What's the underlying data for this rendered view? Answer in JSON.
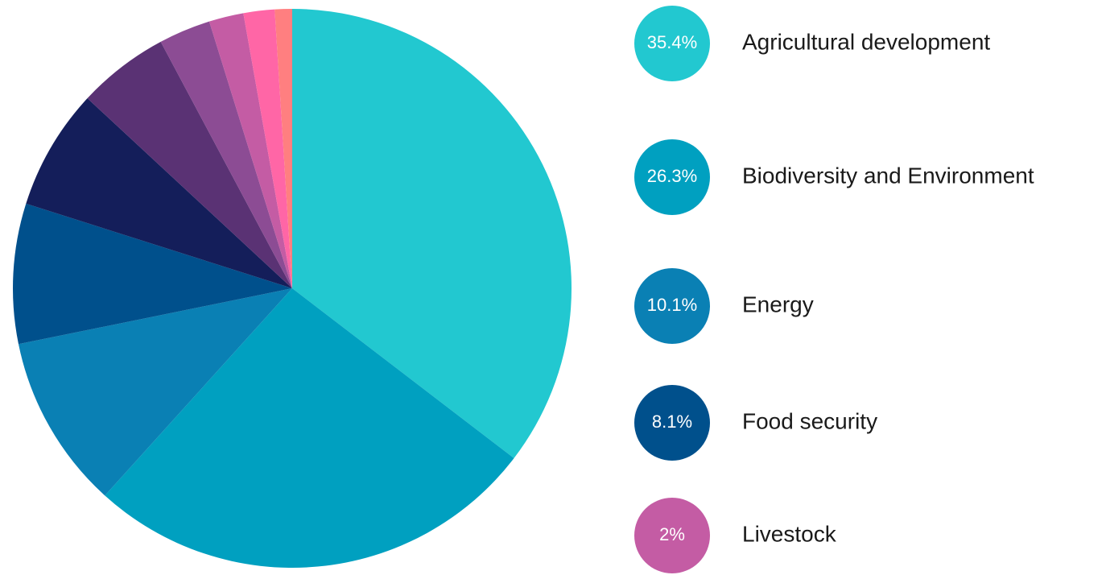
{
  "chart_data": {
    "type": "pie",
    "categories": [
      "Agricultural development",
      "Biodiversity and Environment",
      "Energy",
      "Food security",
      null,
      null,
      null,
      "Livestock",
      null,
      null
    ],
    "values": [
      35.4,
      26.3,
      10.1,
      8.1,
      7.0,
      5.3,
      3.0,
      2,
      1.8,
      1.0
    ],
    "value_labels": [
      "35.4%",
      "26.3%",
      "10.1%",
      "8.1%",
      null,
      null,
      null,
      "2%",
      null,
      null
    ],
    "colors": [
      "#22c8d0",
      "#00a0c0",
      "#0a80b4",
      "#00508c",
      "#141e5a",
      "#5a3274",
      "#8c4c94",
      "#c45ca4",
      "#ff66a6",
      "#ff7f80"
    ]
  }
}
